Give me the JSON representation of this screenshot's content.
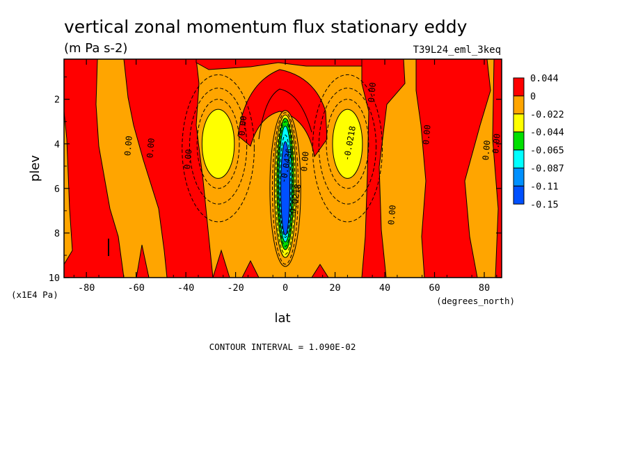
{
  "figure": {
    "title": "vertical zonal momentum flux stationary eddy",
    "units": "(m Pa s-2)",
    "run_id": "T39L24_eml_3keq",
    "footer": "CONTOUR INTERVAL = 1.090E-02"
  },
  "chart_data": {
    "type": "heatmap",
    "xlabel": "lat",
    "ylabel": "plev",
    "x_unit": "(degrees_north)",
    "y_unit": "(x1E4 Pa)",
    "xlim": [
      -89,
      87
    ],
    "ylim": [
      10,
      0.2
    ],
    "x_ticks": [
      -80,
      -60,
      -40,
      -20,
      0,
      20,
      40,
      60,
      80
    ],
    "y_ticks": [
      2,
      4,
      6,
      8,
      10
    ],
    "contour_interval": 0.0109,
    "colorbar": {
      "levels": [
        "0.044",
        "0",
        "-0.022",
        "-0.044",
        "-0.065",
        "-0.087",
        "-0.11",
        "-0.15"
      ],
      "colors": [
        "#ff0000",
        "#ffa500",
        "#ffff00",
        "#00e000",
        "#00ffff",
        "#0090ff",
        "#0050ff"
      ]
    },
    "features": [
      {
        "shape": "negative cell",
        "center_lat": -27,
        "center_plev": 4.0,
        "min_level": "-0.022",
        "color": "#ffff00"
      },
      {
        "shape": "negative cell",
        "center_lat": 0,
        "center_plev": 6.0,
        "min_level": "-0.15",
        "color": "#0050ff"
      },
      {
        "shape": "negative cell",
        "center_lat": 25,
        "center_plev": 4.0,
        "min_level": "-0.022",
        "color": "#ffff00"
      }
    ],
    "contour_labels": [
      {
        "text": "0.00",
        "lat": -62,
        "plev": 4.1
      },
      {
        "text": "0.00",
        "lat": -53,
        "plev": 4.2
      },
      {
        "text": "0.00",
        "lat": -38,
        "plev": 4.7
      },
      {
        "text": "0.00",
        "lat": -16,
        "plev": 3.2
      },
      {
        "text": "0.00",
        "lat": 9,
        "plev": 4.8
      },
      {
        "text": "-0.0218",
        "lat": 5,
        "plev": 6.6
      },
      {
        "text": "-0.0436",
        "lat": 1.5,
        "plev": 5.0
      },
      {
        "text": "-0.0218",
        "lat": 27,
        "plev": 4.0
      },
      {
        "text": "0.00",
        "lat": 36,
        "plev": 1.7
      },
      {
        "text": "0.00",
        "lat": 44,
        "plev": 7.2
      },
      {
        "text": "0.00",
        "lat": 58,
        "plev": 3.6
      },
      {
        "text": "0.00",
        "lat": 82,
        "plev": 4.3
      },
      {
        "text": "0.00",
        "lat": 86,
        "plev": 4.0
      }
    ]
  }
}
